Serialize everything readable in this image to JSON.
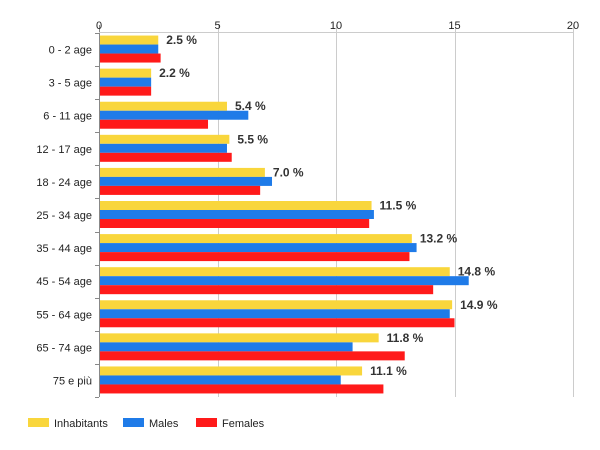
{
  "colors": {
    "inhabitants": "#f9d63c",
    "males": "#1f7be8",
    "females": "#ff1a1a",
    "grid": "#cccccc",
    "axis": "#888888"
  },
  "legend": [
    {
      "key": "inhabitants",
      "label": "Inhabitants"
    },
    {
      "key": "males",
      "label": "Males"
    },
    {
      "key": "females",
      "label": "Females"
    }
  ],
  "chart_data": {
    "type": "bar",
    "orientation": "horizontal",
    "categories": [
      "0 - 2 age",
      "3 - 5 age",
      "6 - 11 age",
      "12 - 17 age",
      "18 - 24 age",
      "25 - 34 age",
      "35 - 44 age",
      "45 - 54 age",
      "55 - 64 age",
      "65 - 74 age",
      "75 e più"
    ],
    "series": [
      {
        "name": "Inhabitants",
        "key": "inhabitants",
        "values": [
          2.5,
          2.2,
          5.4,
          5.5,
          7.0,
          11.5,
          13.2,
          14.8,
          14.9,
          11.8,
          11.1
        ]
      },
      {
        "name": "Males",
        "key": "males",
        "values": [
          2.5,
          2.2,
          6.3,
          5.4,
          7.3,
          11.6,
          13.4,
          15.6,
          14.8,
          10.7,
          10.2
        ]
      },
      {
        "name": "Females",
        "key": "females",
        "values": [
          2.6,
          2.2,
          4.6,
          5.6,
          6.8,
          11.4,
          13.1,
          14.1,
          15.0,
          12.9,
          12.0
        ]
      }
    ],
    "data_labels": [
      "2.5 %",
      "2.2 %",
      "5.4 %",
      "5.5 %",
      "7.0 %",
      "11.5 %",
      "13.2 %",
      "14.8 %",
      "14.9 %",
      "11.8 %",
      "11.1 %"
    ],
    "xlim": [
      0,
      20
    ],
    "xticks": [
      0,
      5,
      10,
      15,
      20
    ],
    "xtick_labels": [
      "0",
      "5",
      "10",
      "15",
      "20"
    ],
    "x_axis_position": "top",
    "grid": true,
    "legend_position": "bottom-left"
  }
}
